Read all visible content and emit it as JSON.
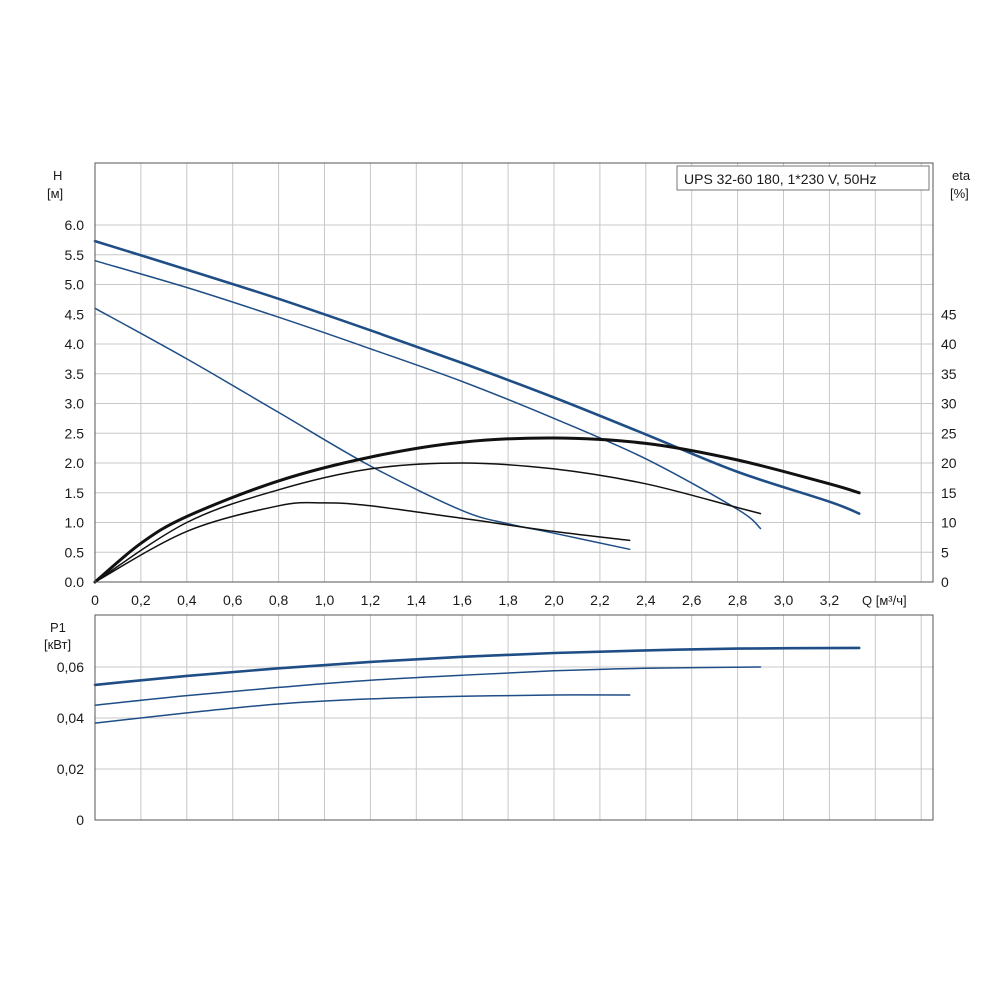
{
  "chart_data": [
    {
      "type": "line",
      "title": "UPS 32-60 180, 1*230 V, 50Hz",
      "xlabel": "Q [м³/ч]",
      "ylabel_left": "H",
      "ylabel_left_unit": "[м]",
      "ylabel_right": "eta",
      "ylabel_right_unit": "[%]",
      "xlim": [
        0,
        3.6
      ],
      "ylim": [
        0,
        6.5
      ],
      "ylim_right": [
        0,
        50
      ],
      "grid": true,
      "x_ticks": [
        "0",
        "0,2",
        "0,4",
        "0,6",
        "0,8",
        "1,0",
        "1,2",
        "1,4",
        "1,6",
        "1,8",
        "2,0",
        "2,2",
        "2,4",
        "2,6",
        "2,8",
        "3,0",
        "3,2"
      ],
      "y_ticks_left": [
        "0.0",
        "0.5",
        "1.0",
        "1.5",
        "2.0",
        "2.5",
        "3.0",
        "3.5",
        "4.0",
        "4.5",
        "5.0",
        "5.5",
        "6.0"
      ],
      "y_ticks_right": [
        "0",
        "5",
        "10",
        "15",
        "20",
        "25",
        "30",
        "35",
        "40",
        "45"
      ],
      "series": [
        {
          "axis": "left",
          "color": "#1f4e86",
          "width": 2.6,
          "x": [
            0,
            0.4,
            0.8,
            1.2,
            1.6,
            2.0,
            2.4,
            2.8,
            3.2,
            3.33
          ],
          "y": [
            5.73,
            5.25,
            4.76,
            4.23,
            3.68,
            3.1,
            2.48,
            1.85,
            1.35,
            1.15
          ]
        },
        {
          "axis": "left",
          "color": "#1f4e86",
          "width": 1.5,
          "x": [
            0,
            0.4,
            0.8,
            1.2,
            1.6,
            2.0,
            2.4,
            2.8,
            2.9
          ],
          "y": [
            5.4,
            4.95,
            4.45,
            3.92,
            3.37,
            2.75,
            2.07,
            1.22,
            0.9
          ]
        },
        {
          "axis": "left",
          "color": "#1f4e86",
          "width": 1.5,
          "x": [
            0,
            0.4,
            0.8,
            1.2,
            1.6,
            1.8,
            2.0,
            2.33
          ],
          "y": [
            4.6,
            3.75,
            2.85,
            1.95,
            1.2,
            0.98,
            0.82,
            0.55
          ]
        },
        {
          "axis": "right",
          "color": "#111111",
          "width": 3,
          "x": [
            0,
            0.2,
            0.4,
            0.8,
            1.2,
            1.6,
            2.0,
            2.4,
            2.8,
            3.2,
            3.33
          ],
          "y": [
            0,
            6.5,
            11,
            17,
            21,
            23.5,
            24.2,
            23.3,
            20.5,
            16.5,
            15
          ]
        },
        {
          "axis": "right",
          "color": "#111111",
          "width": 1.5,
          "x": [
            0,
            0.4,
            0.8,
            1.2,
            1.6,
            2.0,
            2.4,
            2.8,
            2.9
          ],
          "y": [
            0,
            10,
            15.5,
            19,
            20,
            19,
            16.5,
            12.5,
            11.5
          ]
        },
        {
          "axis": "right",
          "color": "#111111",
          "width": 1.5,
          "x": [
            0,
            0.4,
            0.8,
            1.0,
            1.2,
            1.6,
            2.0,
            2.33
          ],
          "y": [
            0,
            8.5,
            12.8,
            13.3,
            12.8,
            10.7,
            8.5,
            7
          ]
        }
      ]
    },
    {
      "type": "line",
      "ylabel": "P1",
      "ylabel_unit": "[кВт]",
      "xlim": [
        0,
        3.6
      ],
      "ylim": [
        0,
        0.07
      ],
      "grid": true,
      "y_ticks": [
        "0",
        "0,02",
        "0,04",
        "0,06"
      ],
      "series": [
        {
          "color": "#1f4e86",
          "width": 2.6,
          "x": [
            0,
            0.4,
            0.8,
            1.2,
            1.6,
            2.0,
            2.4,
            2.8,
            3.33
          ],
          "y": [
            0.053,
            0.0565,
            0.0595,
            0.062,
            0.064,
            0.0655,
            0.0665,
            0.0672,
            0.0675
          ]
        },
        {
          "color": "#1f4e86",
          "width": 1.5,
          "x": [
            0,
            0.4,
            0.8,
            1.2,
            1.6,
            2.0,
            2.4,
            2.9
          ],
          "y": [
            0.045,
            0.0488,
            0.052,
            0.0548,
            0.0568,
            0.0585,
            0.0595,
            0.06
          ]
        },
        {
          "color": "#1f4e86",
          "width": 1.5,
          "x": [
            0,
            0.4,
            0.8,
            1.2,
            1.6,
            2.0,
            2.33
          ],
          "y": [
            0.038,
            0.042,
            0.0455,
            0.0475,
            0.0485,
            0.049,
            0.049
          ]
        }
      ]
    }
  ]
}
